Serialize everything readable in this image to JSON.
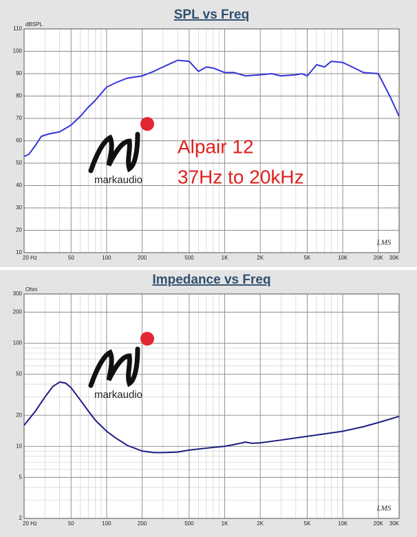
{
  "chart_data": [
    {
      "type": "line",
      "title": "SPL vs Freq",
      "y_unit": "dBSPL",
      "xscale": "log",
      "yscale": "linear",
      "grid": true,
      "minor_grid": true,
      "annotations": [
        "Alpair 12",
        "37Hz to 20kHz"
      ],
      "logo_text": "markaudio",
      "watermark": "LMS",
      "annotation_color": "#e0201c",
      "x": [
        20,
        22,
        25,
        28,
        32,
        40,
        50,
        60,
        70,
        80,
        100,
        120,
        150,
        200,
        250,
        300,
        400,
        500,
        600,
        700,
        800,
        1000,
        1200,
        1500,
        2000,
        2500,
        3000,
        4000,
        4500,
        5000,
        6000,
        7000,
        8000,
        10000,
        12000,
        15000,
        20000,
        25000,
        30000
      ],
      "series": [
        {
          "name": "SPL",
          "color": "#3434d8",
          "values": [
            53,
            54,
            58,
            62,
            63,
            64,
            67,
            71,
            75,
            78,
            84,
            86,
            88,
            89,
            91,
            93,
            96,
            95.5,
            91,
            93,
            92.5,
            90.5,
            90.5,
            89,
            89.5,
            90,
            89,
            89.5,
            90,
            89,
            94,
            93,
            95.5,
            95,
            93,
            90.5,
            90,
            80,
            71
          ]
        }
      ],
      "xlim": [
        20,
        30000
      ],
      "xticks": [
        {
          "value": 20,
          "label": "20 Hz"
        },
        50,
        100,
        200,
        500,
        {
          "value": 1000,
          "label": "1K"
        },
        {
          "value": 2000,
          "label": "2K"
        },
        {
          "value": 5000,
          "label": "5K"
        },
        {
          "value": 10000,
          "label": "10K"
        },
        {
          "value": 20000,
          "label": "20K"
        },
        {
          "value": 30000,
          "label": "30K"
        }
      ],
      "ylim": [
        10,
        110
      ],
      "yticks": [
        10,
        20,
        30,
        40,
        50,
        60,
        70,
        80,
        90,
        100,
        110
      ]
    },
    {
      "type": "line",
      "title": "Impedance vs Freq",
      "y_unit": "Ohm",
      "xscale": "log",
      "yscale": "log",
      "grid": true,
      "minor_grid": true,
      "logo_text": "markaudio",
      "watermark": "LMS",
      "x": [
        20,
        25,
        30,
        35,
        40,
        45,
        50,
        60,
        70,
        80,
        100,
        120,
        150,
        200,
        250,
        300,
        400,
        500,
        700,
        1000,
        1200,
        1500,
        1700,
        2000,
        3000,
        5000,
        7000,
        10000,
        15000,
        20000,
        30000
      ],
      "series": [
        {
          "name": "Impedance",
          "color": "#1c1c82",
          "values": [
            16,
            22,
            30,
            38,
            42,
            41,
            37,
            28,
            22,
            18,
            14,
            12,
            10.2,
            9,
            8.7,
            8.7,
            8.8,
            9.2,
            9.6,
            10,
            10.4,
            11,
            10.7,
            10.8,
            11.5,
            12.5,
            13.2,
            14,
            15.5,
            17,
            19.5
          ]
        }
      ],
      "xlim": [
        20,
        30000
      ],
      "xticks": [
        {
          "value": 20,
          "label": "20 Hz"
        },
        50,
        100,
        200,
        500,
        {
          "value": 1000,
          "label": "1K"
        },
        {
          "value": 2000,
          "label": "2K"
        },
        {
          "value": 5000,
          "label": "5K"
        },
        {
          "value": 10000,
          "label": "10K"
        },
        {
          "value": 20000,
          "label": "20K"
        },
        {
          "value": 30000,
          "label": "30K"
        }
      ],
      "ylim": [
        2,
        300
      ],
      "yticks": [
        2,
        5,
        10,
        20,
        50,
        100,
        200,
        300
      ]
    }
  ]
}
